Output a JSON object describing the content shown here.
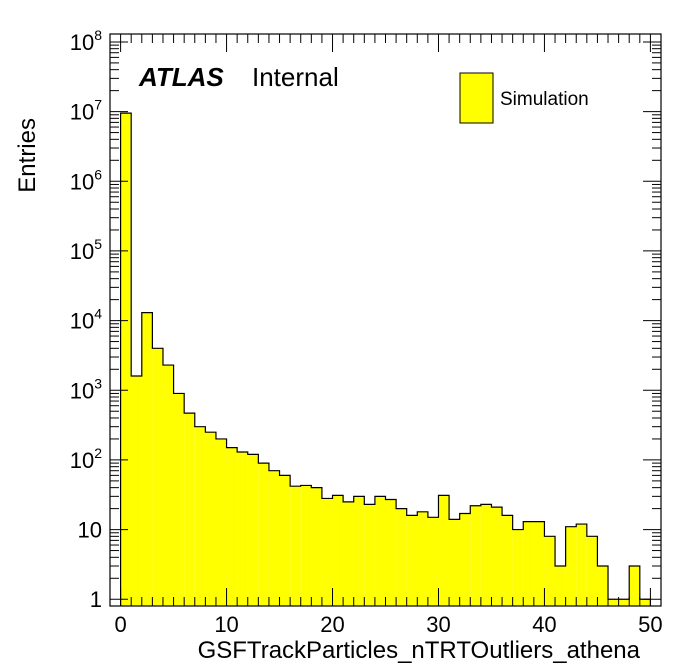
{
  "chart_data": {
    "type": "bar",
    "title": "",
    "xlabel": "GSFTrackParticles_nTRTOutliers_athena",
    "ylabel": "Entries",
    "log_y": true,
    "xlim": [
      -1,
      51
    ],
    "ylim": [
      0.8,
      130000000
    ],
    "bin_width": 1,
    "x_ticks": [
      0,
      10,
      20,
      30,
      40,
      50
    ],
    "x_tick_labels": [
      "0",
      "10",
      "20",
      "30",
      "40",
      "50"
    ],
    "y_ticks": [
      {
        "value": 1,
        "base": "1",
        "exp": ""
      },
      {
        "value": 10,
        "base": "10",
        "exp": ""
      },
      {
        "value": 100,
        "base": "10",
        "exp": "2"
      },
      {
        "value": 1000,
        "base": "10",
        "exp": "3"
      },
      {
        "value": 10000,
        "base": "10",
        "exp": "4"
      },
      {
        "value": 100000,
        "base": "10",
        "exp": "5"
      },
      {
        "value": 1000000,
        "base": "10",
        "exp": "6"
      },
      {
        "value": 10000000,
        "base": "10",
        "exp": "7"
      },
      {
        "value": 100000000,
        "base": "10",
        "exp": "8"
      }
    ],
    "grid": false,
    "legend_position": "top-right",
    "color": "#ffff00",
    "series": [
      {
        "name": "Simulation",
        "x": [
          0,
          1,
          2,
          3,
          4,
          5,
          6,
          7,
          8,
          9,
          10,
          11,
          12,
          13,
          14,
          15,
          16,
          17,
          18,
          19,
          20,
          21,
          22,
          23,
          24,
          25,
          26,
          27,
          28,
          29,
          30,
          31,
          32,
          33,
          34,
          35,
          36,
          37,
          38,
          39,
          40,
          41,
          42,
          43,
          44,
          45,
          46,
          47,
          48,
          49
        ],
        "values": [
          9500000,
          1600,
          13000,
          4000,
          2300,
          900,
          470,
          300,
          250,
          200,
          150,
          130,
          120,
          90,
          70,
          60,
          42,
          43,
          40,
          28,
          31,
          25,
          30,
          23,
          30,
          27,
          20,
          16,
          18,
          15,
          31,
          14,
          17,
          22,
          23,
          21,
          16,
          10,
          13,
          13,
          8,
          3,
          11,
          12,
          8,
          3,
          1,
          1,
          3,
          1
        ]
      }
    ],
    "annotations": {
      "atlas": "ATLAS",
      "internal": "Internal"
    }
  }
}
